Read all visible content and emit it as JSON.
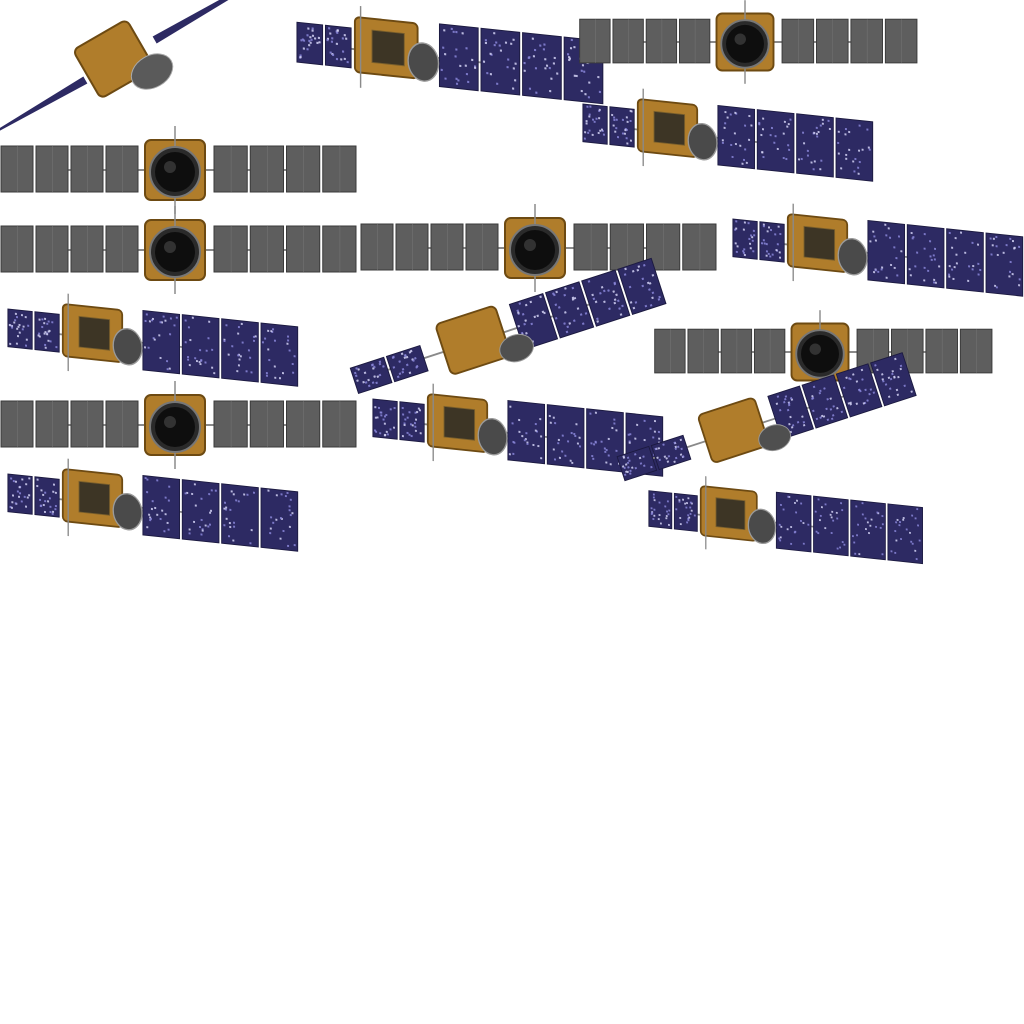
{
  "sprite_sheet": {
    "background": "#ffffff",
    "palette": {
      "gray_panel": "#5e5e5e",
      "gray_panel_edge": "#3a3a3a",
      "blue_panel": "#2d2a63",
      "blue_cell": "#8a86d8",
      "gold_body": "#b07d2b",
      "gold_dark": "#6d4a12",
      "black_dish": "#0e0e0e",
      "mast": "#8a8a8a"
    },
    "frames": [
      {
        "name": "sprite-frame-1",
        "view": "edge-on-diagonal",
        "icon": "satellite-edge-icon"
      },
      {
        "name": "sprite-frame-2",
        "view": "three-quarter",
        "icon": "satellite-3q-icon"
      },
      {
        "name": "sprite-frame-3",
        "view": "front-dish",
        "icon": "satellite-front-icon"
      },
      {
        "name": "sprite-frame-4",
        "view": "three-quarter",
        "icon": "satellite-3q-icon"
      },
      {
        "name": "sprite-frame-5",
        "view": "front-dish",
        "icon": "satellite-front-icon"
      },
      {
        "name": "sprite-frame-6",
        "view": "front-dish",
        "icon": "satellite-front-icon"
      },
      {
        "name": "sprite-frame-7",
        "view": "front-dish",
        "icon": "satellite-front-icon"
      },
      {
        "name": "sprite-frame-8",
        "view": "three-quarter",
        "icon": "satellite-3q-icon"
      },
      {
        "name": "sprite-frame-9",
        "view": "three-quarter",
        "icon": "satellite-3q-icon"
      },
      {
        "name": "sprite-frame-10",
        "view": "tilted",
        "icon": "satellite-tilted-icon"
      },
      {
        "name": "sprite-frame-11",
        "view": "front-dish",
        "icon": "satellite-front-icon"
      },
      {
        "name": "sprite-frame-12",
        "view": "front-dish",
        "icon": "satellite-front-icon"
      },
      {
        "name": "sprite-frame-13",
        "view": "three-quarter",
        "icon": "satellite-3q-icon"
      },
      {
        "name": "sprite-frame-14",
        "view": "tilted",
        "icon": "satellite-tilted-icon"
      },
      {
        "name": "sprite-frame-15",
        "view": "three-quarter",
        "icon": "satellite-3q-icon"
      },
      {
        "name": "sprite-frame-16",
        "view": "three-quarter",
        "icon": "satellite-3q-icon"
      }
    ]
  }
}
